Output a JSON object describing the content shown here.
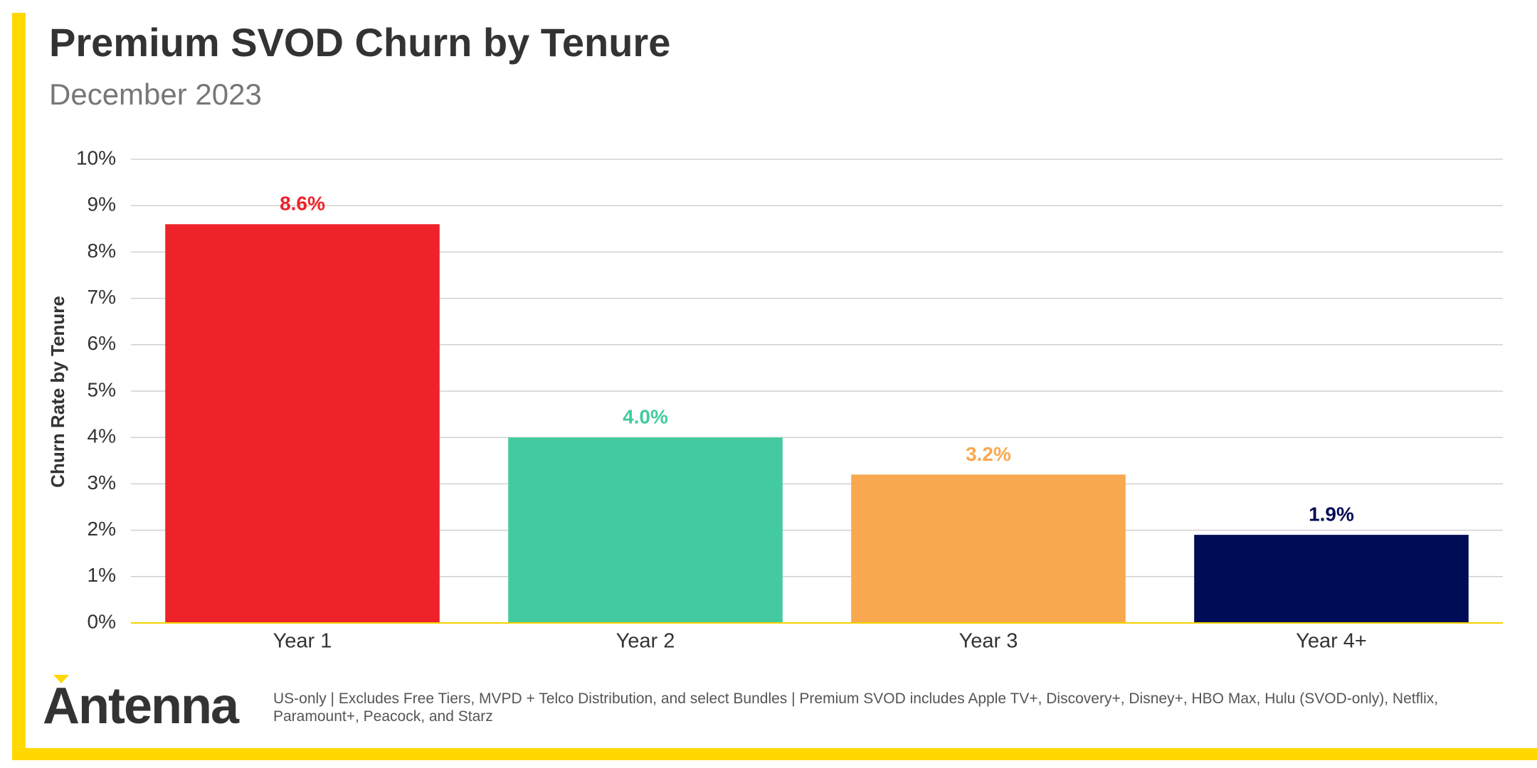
{
  "chart_data": {
    "type": "bar",
    "title": "Premium SVOD Churn by Tenure",
    "subtitle": "December 2023",
    "y_axis_label": "Churn Rate by Tenure",
    "categories": [
      "Year 1",
      "Year 2",
      "Year 3",
      "Year 4+"
    ],
    "values": [
      8.6,
      4.0,
      3.2,
      1.9
    ],
    "value_labels": [
      "8.6%",
      "4.0%",
      "3.2%",
      "1.9%"
    ],
    "colors": [
      "#ee2229",
      "#43cb9f",
      "#f8a84f",
      "#000c55"
    ],
    "ylim": [
      0,
      10
    ],
    "yticks": [
      {
        "value": 0,
        "label": "0%"
      },
      {
        "value": 1,
        "label": "1%"
      },
      {
        "value": 2,
        "label": "2%"
      },
      {
        "value": 3,
        "label": "3%"
      },
      {
        "value": 4,
        "label": "4%"
      },
      {
        "value": 5,
        "label": "5%"
      },
      {
        "value": 6,
        "label": "6%"
      },
      {
        "value": 7,
        "label": "7%"
      },
      {
        "value": 8,
        "label": "8%"
      },
      {
        "value": 9,
        "label": "9%"
      },
      {
        "value": 10,
        "label": "10%"
      }
    ],
    "grid": true
  },
  "footer": {
    "logo": "Antenna",
    "note": "US-only | Excludes Free Tiers, MVPD + Telco Distribution, and select Bundles | Premium SVOD includes Apple TV+, Discovery+, Disney+, HBO Max, Hulu (SVOD-only), Netflix, Paramount+, Peacock, and Starz"
  }
}
